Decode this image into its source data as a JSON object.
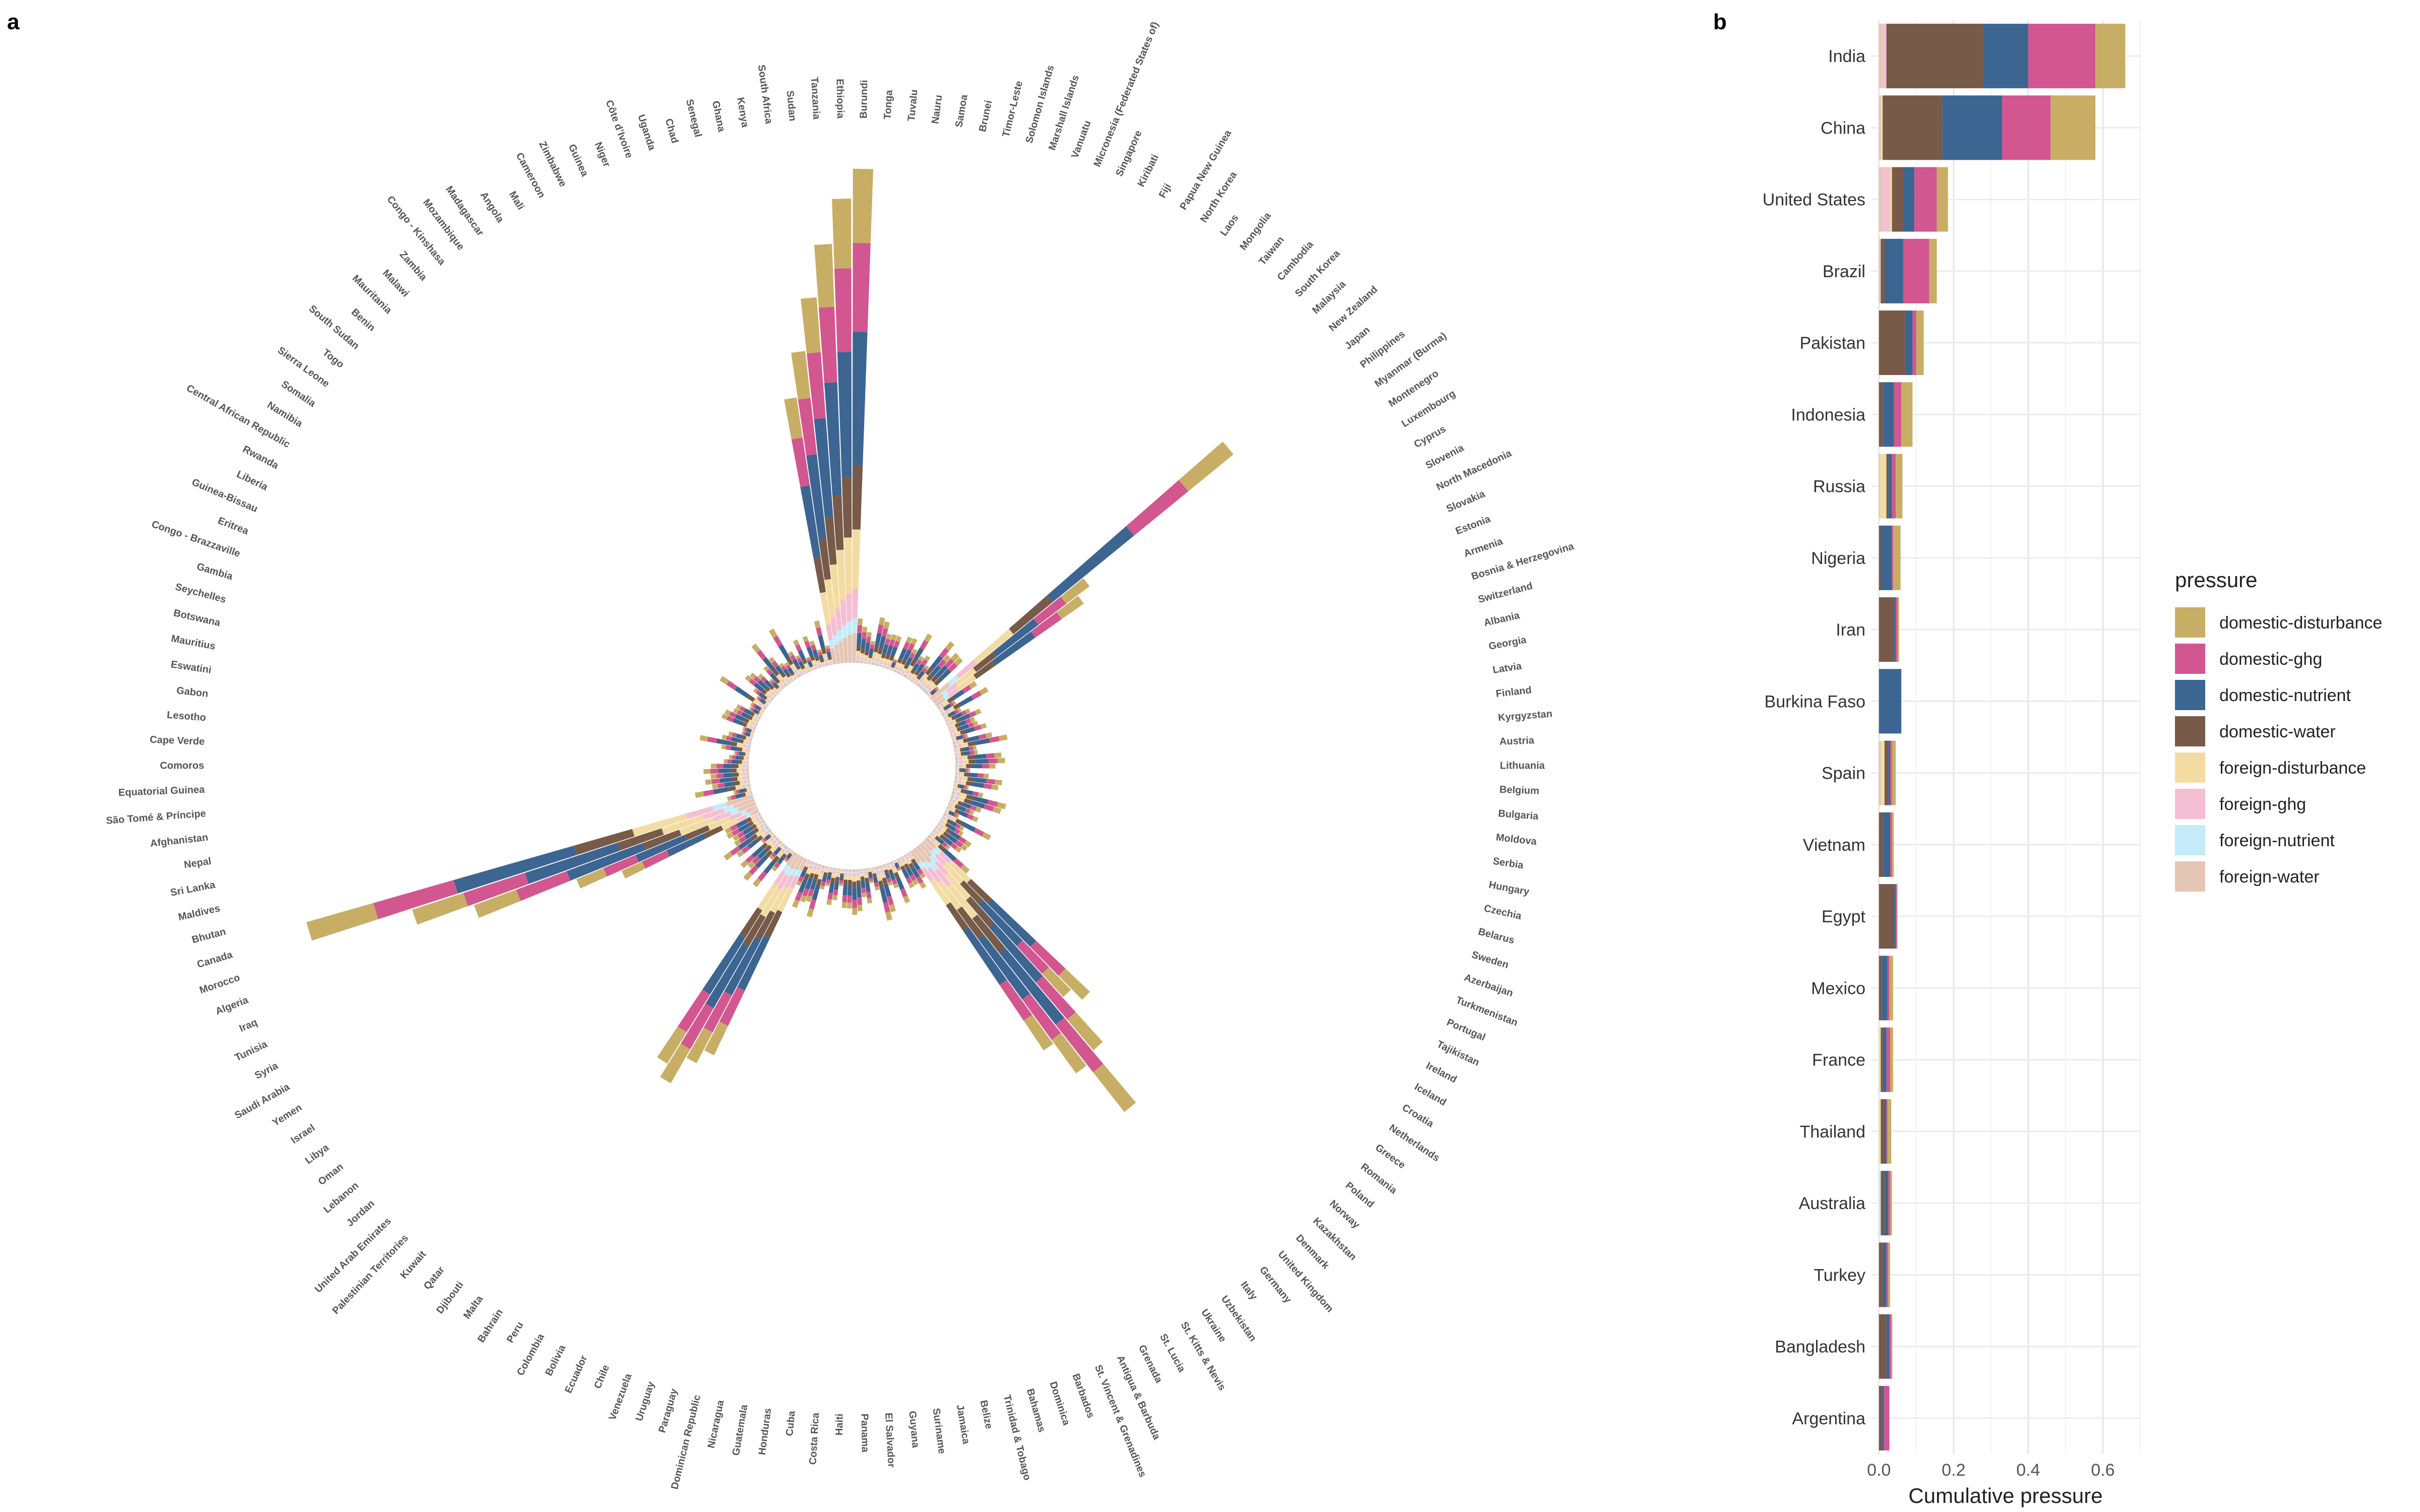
{
  "colors": {
    "domestic-disturbance": "#c8ae65",
    "domestic-ghg": "#d2568f",
    "domestic-nutrient": "#3c6591",
    "domestic-water": "#775a47",
    "foreign-disturbance": "#f2dca2",
    "foreign-ghg": "#f4bfd3",
    "foreign-nutrient": "#c3ecf8",
    "foreign-water": "#e5c6b5"
  },
  "chart_data": [
    {
      "panel": "a",
      "type": "bar",
      "subtype": "radial-stacked",
      "stack_order": [
        "foreign-water",
        "foreign-nutrient",
        "foreign-ghg",
        "foreign-disturbance",
        "domestic-water",
        "domestic-nutrient",
        "domestic-ghg",
        "domestic-disturbance"
      ],
      "r_max": 0.68,
      "categories": [
        "Burundi",
        "Tonga",
        "Tuvalu",
        "Nauru",
        "Samoa",
        "Brunei",
        "Timor-Leste",
        "Solomon Islands",
        "Marshall Islands",
        "Vanuatu",
        "Micronesia (Federated States of)",
        "Singapore",
        "Kiribati",
        "Fiji",
        "Papua New Guinea",
        "North Korea",
        "Laos",
        "Mongolia",
        "Taiwan",
        "Cambodia",
        "South Korea",
        "Malaysia",
        "New Zealand",
        "Japan",
        "Philippines",
        "Myanmar (Burma)",
        "Montenegro",
        "Luxembourg",
        "Cyprus",
        "Slovenia",
        "North Macedonia",
        "Slovakia",
        "Estonia",
        "Armenia",
        "Bosnia & Herzegovina",
        "Switzerland",
        "Albania",
        "Georgia",
        "Latvia",
        "Finland",
        "Kyrgyzstan",
        "Austria",
        "Lithuania",
        "Belgium",
        "Bulgaria",
        "Moldova",
        "Serbia",
        "Hungary",
        "Czechia",
        "Belarus",
        "Sweden",
        "Azerbaijan",
        "Turkmenistan",
        "Portugal",
        "Tajikistan",
        "Ireland",
        "Iceland",
        "Croatia",
        "Netherlands",
        "Greece",
        "Romania",
        "Poland",
        "Norway",
        "Kazakhstan",
        "Denmark",
        "United Kingdom",
        "Germany",
        "Italy",
        "Uzbekistan",
        "Ukraine",
        "St. Kitts & Nevis",
        "St. Lucia",
        "Grenada",
        "Antigua & Barbuda",
        "St. Vincent & Grenadines",
        "Barbados",
        "Dominica",
        "Bahamas",
        "Trinidad & Tobago",
        "Belize",
        "Jamaica",
        "Suriname",
        "Guyana",
        "El Salvador",
        "Panama",
        "Haiti",
        "Costa Rica",
        "Cuba",
        "Honduras",
        "Guatemala",
        "Nicaragua",
        "Dominican Republic",
        "Paraguay",
        "Uruguay",
        "Venezuela",
        "Chile",
        "Ecuador",
        "Bolivia",
        "Colombia",
        "Peru",
        "Bahrain",
        "Malta",
        "Djibouti",
        "Qatar",
        "Kuwait",
        "Palestinian Territories",
        "United Arab Emirates",
        "Jordan",
        "Lebanon",
        "Oman",
        "Libya",
        "Israel",
        "Yemen",
        "Saudi Arabia",
        "Syria",
        "Tunisia",
        "Iraq",
        "Algeria",
        "Morocco",
        "Canada",
        "Bhutan",
        "Maldives",
        "Sri Lanka",
        "Nepal",
        "Afghanistan",
        "São Tomé & Príncipe",
        "Equatorial Guinea",
        "Comoros",
        "Cape Verde",
        "Lesotho",
        "Gabon",
        "Eswatini",
        "Mauritius",
        "Botswana",
        "Seychelles",
        "Gambia",
        "Congo - Brazzaville",
        "Eritrea",
        "Guinea-Bissau",
        "Liberia",
        "Rwanda",
        "Central African Republic",
        "Namibia",
        "Somalia",
        "Sierra Leone",
        "Togo",
        "South Sudan",
        "Benin",
        "Mauritania",
        "Malawi",
        "Zambia",
        "Congo - Kinshasa",
        "Mozambique",
        "Madagascar",
        "Angola",
        "Mali",
        "Cameroon",
        "Zimbabwe",
        "Guinea",
        "Niger",
        "Côte d’Ivoire",
        "Uganda",
        "Chad",
        "Senegal",
        "Ghana",
        "Kenya",
        "South Africa",
        "Sudan",
        "Tanzania",
        "Ethiopia"
      ],
      "highlighted_values": {
        "Ethiopia": 0.62,
        "Tanzania": 0.56,
        "Burundi": 0.66,
        "Sudan": 0.49,
        "South Africa": 0.42,
        "Kenya": 0.36,
        "Japan": 0.52,
        "Philippines": 0.26,
        "Myanmar (Burma)": 0.24,
        "Germany": 0.45,
        "United Kingdom": 0.36,
        "Italy": 0.37,
        "Uzbekistan": 0.32,
        "Denmark": 0.28,
        "Kazakhstan": 0.3,
        "Peru": 0.35,
        "Bahrain": 0.33,
        "Colombia": 0.31,
        "Bolivia": 0.29,
        "Canada": 0.62,
        "Morocco": 0.48,
        "Algeria": 0.4,
        "Iraq": 0.26,
        "Tunisia": 0.2
      }
    },
    {
      "panel": "b",
      "type": "bar",
      "subtype": "horizontal-stacked",
      "xlabel": "Cumulative pressure",
      "xlim": [
        -0.02,
        0.7
      ],
      "xticks": [
        0.0,
        0.2,
        0.4,
        0.6
      ],
      "xtick_labels": [
        "0.0",
        "0.2",
        "0.4",
        "0.6"
      ],
      "legend": {
        "title": "pressure",
        "position": "right"
      },
      "categories": [
        "India",
        "China",
        "United States",
        "Brazil",
        "Pakistan",
        "Indonesia",
        "Russia",
        "Nigeria",
        "Iran",
        "Burkina Faso",
        "Spain",
        "Vietnam",
        "Egypt",
        "Mexico",
        "France",
        "Thailand",
        "Australia",
        "Turkey",
        "Bangladesh",
        "Argentina"
      ],
      "series": [
        {
          "name": "foreign-water",
          "values": [
            0.01,
            0.005,
            0.01,
            0.005,
            0.0,
            0.0,
            0.003,
            0.0,
            0.0,
            0.0,
            0.005,
            0.0,
            0.0,
            0.0,
            0.0,
            0.0,
            0.0,
            0.0,
            0.0,
            0.0
          ]
        },
        {
          "name": "foreign-nutrient",
          "values": [
            0.0,
            0.0,
            0.0,
            0.0,
            0.0,
            0.0,
            0.0,
            0.0,
            0.0,
            0.0,
            0.0,
            0.0,
            0.0,
            0.0,
            0.0,
            0.0,
            0.005,
            0.0,
            0.0,
            0.0
          ]
        },
        {
          "name": "foreign-ghg",
          "values": [
            0.01,
            0.0,
            0.02,
            0.0,
            0.0,
            0.0,
            0.0,
            0.0,
            0.0,
            0.0,
            0.0,
            0.0,
            0.0,
            0.0,
            0.0,
            0.0,
            0.0,
            0.0,
            0.0,
            0.0
          ]
        },
        {
          "name": "foreign-disturbance",
          "values": [
            0.0,
            0.005,
            0.005,
            0.0,
            0.0,
            0.0,
            0.017,
            0.0,
            0.0,
            0.0,
            0.01,
            0.0,
            0.0,
            0.0,
            0.005,
            0.005,
            0.0,
            0.0,
            0.0,
            0.0
          ]
        },
        {
          "name": "domestic-water",
          "values": [
            0.26,
            0.16,
            0.03,
            0.01,
            0.07,
            0.01,
            0.005,
            0.005,
            0.04,
            0.0,
            0.01,
            0.01,
            0.04,
            0.008,
            0.005,
            0.01,
            0.01,
            0.01,
            0.02,
            0.008
          ]
        },
        {
          "name": "domestic-nutrient",
          "values": [
            0.12,
            0.16,
            0.03,
            0.05,
            0.02,
            0.03,
            0.01,
            0.03,
            0.005,
            0.06,
            0.005,
            0.02,
            0.005,
            0.015,
            0.01,
            0.005,
            0.01,
            0.01,
            0.008,
            0.005
          ]
        },
        {
          "name": "domestic-ghg",
          "values": [
            0.18,
            0.13,
            0.06,
            0.07,
            0.01,
            0.02,
            0.01,
            0.003,
            0.005,
            0.0,
            0.005,
            0.005,
            0.003,
            0.005,
            0.01,
            0.003,
            0.005,
            0.005,
            0.005,
            0.015
          ]
        },
        {
          "name": "domestic-disturbance",
          "values": [
            0.08,
            0.12,
            0.03,
            0.02,
            0.02,
            0.03,
            0.018,
            0.02,
            0.004,
            0.0,
            0.01,
            0.005,
            0.002,
            0.01,
            0.008,
            0.01,
            0.005,
            0.005,
            0.003,
            0.0
          ]
        }
      ]
    }
  ],
  "panel_labels": {
    "a": "a",
    "b": "b"
  }
}
